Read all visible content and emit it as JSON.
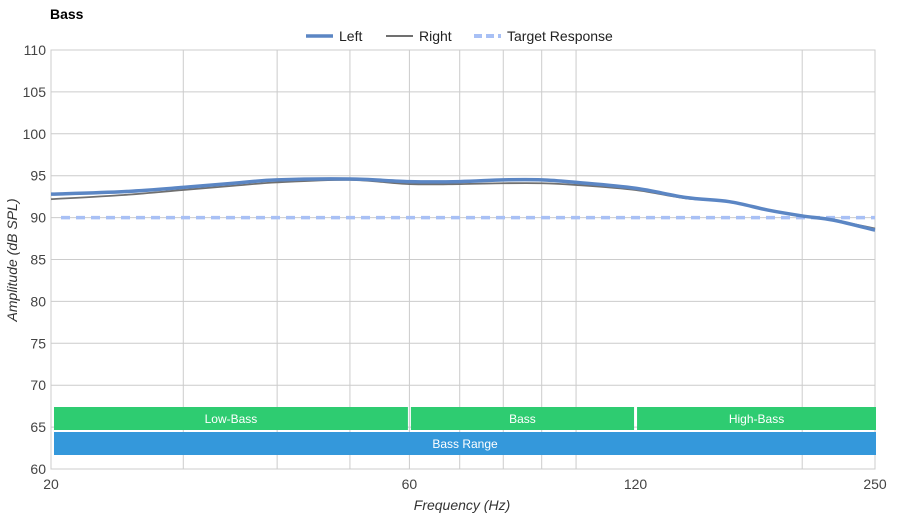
{
  "chart_data": {
    "type": "line",
    "title": "Bass",
    "xlabel": "Frequency (Hz)",
    "ylabel": "Amplitude (dB SPL)",
    "x_scale": "log",
    "xlim": [
      20,
      250
    ],
    "ylim": [
      60,
      110
    ],
    "x_ticks": [
      20,
      60,
      120,
      250
    ],
    "y_ticks": [
      60,
      65,
      70,
      75,
      80,
      85,
      90,
      95,
      100,
      105,
      110
    ],
    "grid": true,
    "legend_position": "top-center",
    "series": [
      {
        "name": "Left",
        "color": "#5b86c4",
        "x": [
          20,
          25,
          30,
          35,
          40,
          50,
          60,
          70,
          80,
          90,
          100,
          120,
          140,
          160,
          180,
          200,
          220,
          250
        ],
        "y": [
          92.8,
          93.1,
          93.6,
          94.1,
          94.5,
          94.6,
          94.3,
          94.3,
          94.5,
          94.5,
          94.2,
          93.5,
          92.4,
          91.9,
          90.9,
          90.2,
          89.7,
          88.5
        ]
      },
      {
        "name": "Right",
        "color": "#707070",
        "x": [
          20,
          25,
          30,
          35,
          40,
          50,
          60,
          70,
          80,
          90,
          100,
          120,
          140,
          160,
          180,
          200,
          220,
          250
        ],
        "y": [
          92.2,
          92.7,
          93.3,
          93.8,
          94.2,
          94.5,
          94.0,
          94.0,
          94.1,
          94.1,
          93.9,
          93.3,
          92.3,
          91.9,
          90.9,
          90.2,
          89.7,
          88.7
        ]
      },
      {
        "name": "Target Response",
        "color": "#a8c0f5",
        "dashed": true,
        "x": [
          20,
          250
        ],
        "y": [
          90,
          90
        ]
      }
    ],
    "bands": [
      {
        "label": "Low-Bass",
        "x_from": 20,
        "x_to": 60,
        "row": 1,
        "color": "#2ecc71"
      },
      {
        "label": "Bass",
        "x_from": 60,
        "x_to": 120,
        "row": 1,
        "color": "#2ecc71"
      },
      {
        "label": "High-Bass",
        "x_from": 120,
        "x_to": 250,
        "row": 1,
        "color": "#2ecc71"
      },
      {
        "label": "Bass Range",
        "x_from": 20,
        "x_to": 250,
        "row": 2,
        "color": "#3498db"
      }
    ]
  }
}
